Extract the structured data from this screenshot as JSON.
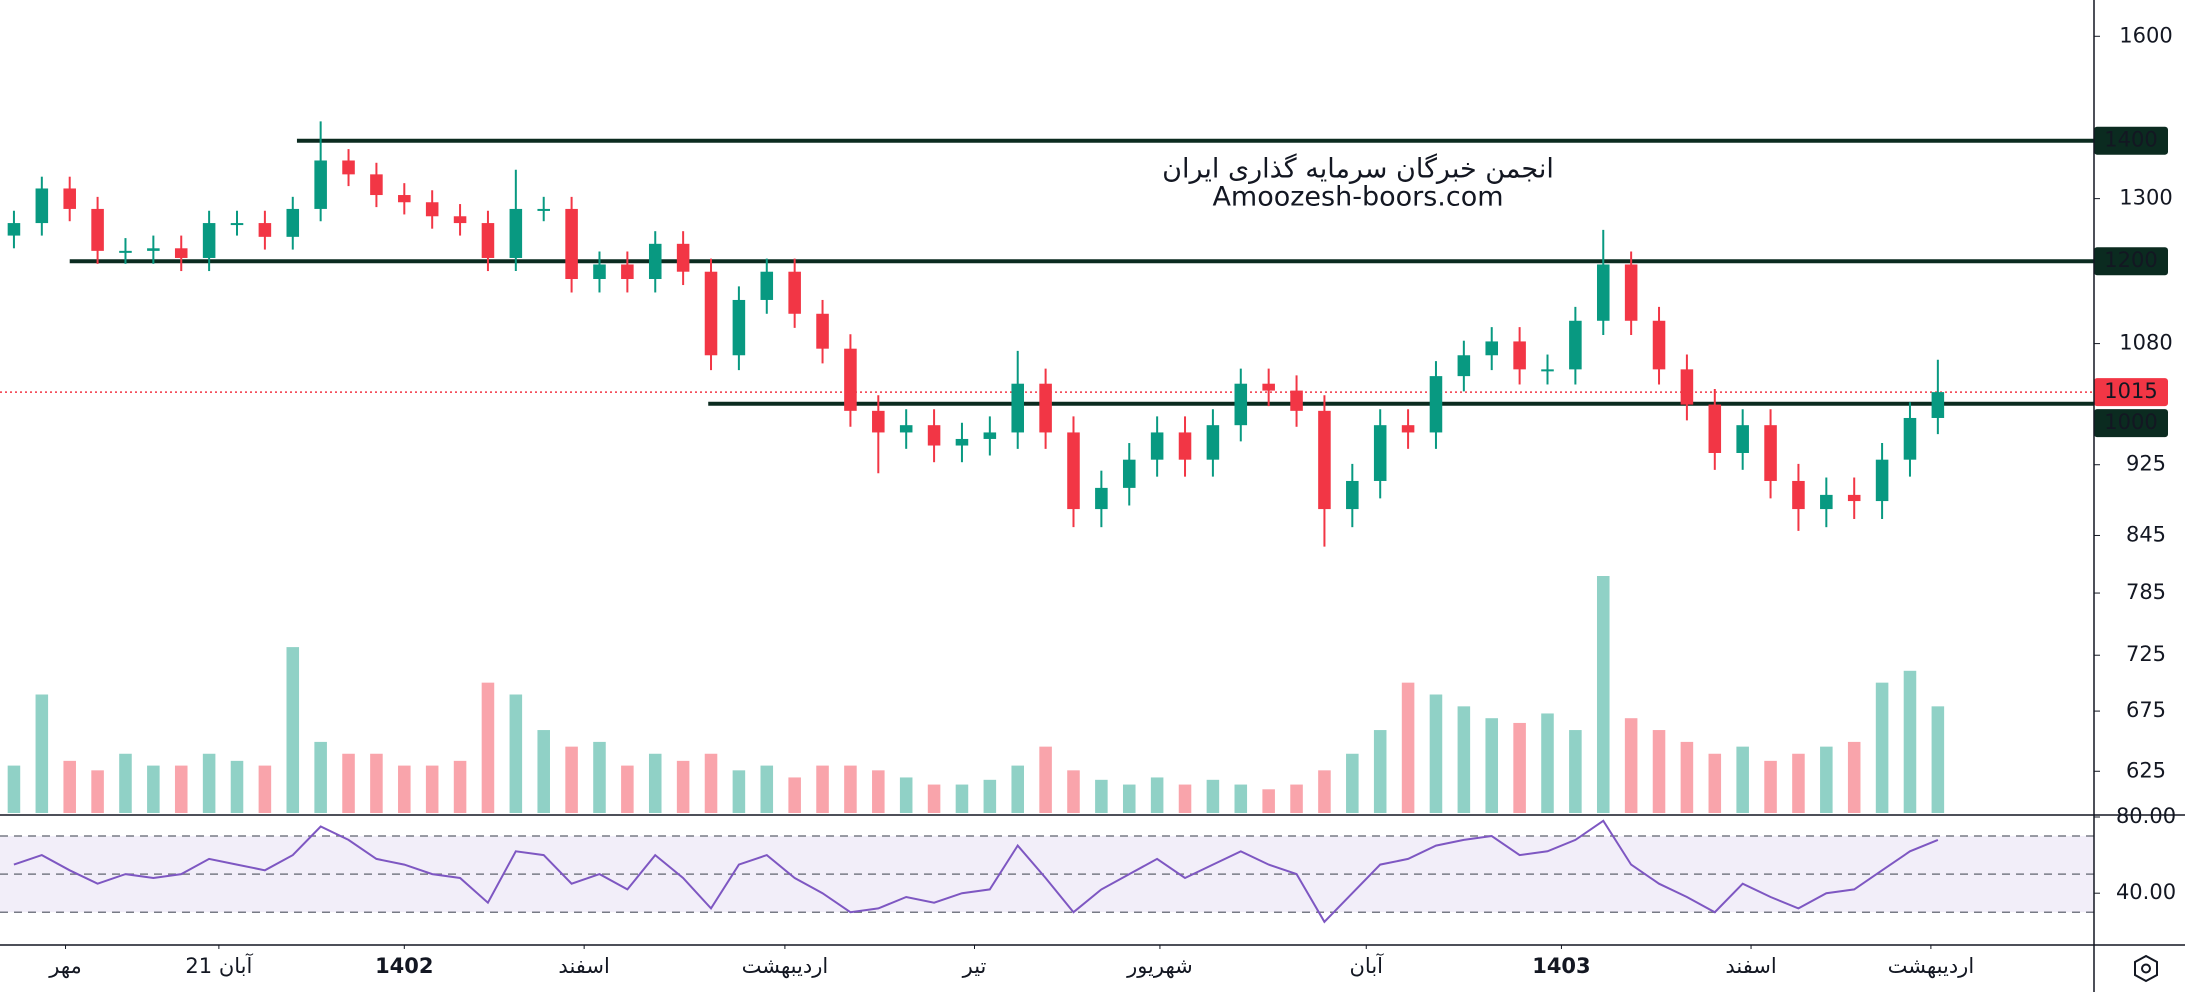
{
  "chart_data": {
    "type": "candlestick",
    "watermark_title": "انجمن خبرگان سرمایه گذاری ایران",
    "watermark_url": "Amoozesh-boors.com",
    "open": [
      1240,
      1260,
      1317,
      1283,
      1216,
      1216,
      1220,
      1205,
      1260,
      1260,
      1238,
      1283,
      1365,
      1341,
      1306,
      1294,
      1271,
      1260,
      1205,
      1283,
      1283,
      1173,
      1195,
      1173,
      1227,
      1184,
      1064,
      1142,
      1184,
      1122,
      1073,
      991,
      964,
      973,
      948,
      956,
      964,
      1026,
      964,
      874,
      898,
      931,
      964,
      931,
      973,
      1026,
      1017,
      991,
      874,
      906,
      973,
      964,
      1036,
      1064,
      1083,
      1045,
      1045,
      1112,
      1195,
      1112,
      1045,
      999,
      939,
      973,
      906,
      874,
      890,
      883,
      931,
      982
    ],
    "high": [
      1280,
      1337,
      1337,
      1303,
      1236,
      1240,
      1240,
      1280,
      1280,
      1280,
      1303,
      1435,
      1385,
      1361,
      1326,
      1314,
      1291,
      1280,
      1349,
      1303,
      1303,
      1215,
      1215,
      1247,
      1247,
      1204,
      1162,
      1204,
      1204,
      1142,
      1093,
      1011,
      993,
      993,
      976,
      984,
      1070,
      1046,
      984,
      918,
      951,
      984,
      984,
      993,
      1046,
      1046,
      1037,
      1011,
      926,
      993,
      993,
      1056,
      1084,
      1103,
      1103,
      1065,
      1132,
      1249,
      1215,
      1132,
      1065,
      1019,
      993,
      993,
      926,
      910,
      910,
      951,
      1002,
      1058
    ],
    "low": [
      1220,
      1240,
      1263,
      1196,
      1196,
      1196,
      1185,
      1185,
      1240,
      1218,
      1218,
      1263,
      1321,
      1286,
      1274,
      1251,
      1240,
      1185,
      1185,
      1263,
      1153,
      1153,
      1153,
      1153,
      1164,
      1044,
      1044,
      1122,
      1102,
      1053,
      971,
      915,
      944,
      928,
      928,
      936,
      944,
      944,
      854,
      854,
      878,
      911,
      911,
      911,
      953,
      997,
      971,
      833,
      854,
      886,
      944,
      944,
      1016,
      1044,
      1025,
      1025,
      1025,
      1092,
      1092,
      1025,
      979,
      919,
      919,
      886,
      850,
      854,
      863,
      863,
      911,
      962
    ],
    "close": [
      1260,
      1317,
      1283,
      1216,
      1216,
      1220,
      1205,
      1260,
      1260,
      1238,
      1283,
      1365,
      1341,
      1306,
      1294,
      1271,
      1260,
      1205,
      1283,
      1283,
      1173,
      1195,
      1173,
      1227,
      1184,
      1064,
      1142,
      1184,
      1122,
      1073,
      991,
      964,
      973,
      948,
      956,
      964,
      1026,
      964,
      874,
      898,
      931,
      964,
      931,
      973,
      1026,
      1017,
      991,
      874,
      906,
      973,
      964,
      1036,
      1064,
      1083,
      1045,
      1045,
      1112,
      1195,
      1112,
      1045,
      999,
      939,
      973,
      906,
      874,
      890,
      883,
      931,
      982,
      1015
    ],
    "xlim": [
      -0.5,
      74.6
    ],
    "ylim": [
      591,
      1676
    ],
    "log_scale": true,
    "yticks": [
      625,
      675,
      725,
      785,
      845,
      925,
      1080,
      1300,
      1600
    ],
    "xticks": [
      {
        "value": 1.85,
        "label": "مهر"
      },
      {
        "value": 7.35,
        "label": "21 آبان"
      },
      {
        "value": 14,
        "label": "1402"
      },
      {
        "value": 20.45,
        "label": "اسفند"
      },
      {
        "value": 27.65,
        "label": "اردیبهشت"
      },
      {
        "value": 34.45,
        "label": "تیر"
      },
      {
        "value": 41.1,
        "label": "شهریور"
      },
      {
        "value": 48.5,
        "label": "آبان"
      },
      {
        "value": 55.5,
        "label": "1403"
      },
      {
        "value": 62.3,
        "label": "اسفند"
      },
      {
        "value": 68.75,
        "label": "اردیبهشت"
      }
    ],
    "levels": [
      {
        "value": 1400,
        "start": 10.15
      },
      {
        "value": 1200,
        "start": 2
      },
      {
        "value": 1000,
        "start": 24.9
      }
    ],
    "last_price": 1015,
    "up_color": "#089981",
    "down_color": "#f23645",
    "level_color": "#0b2b20",
    "volume": {
      "values": [
        20,
        50,
        22,
        18,
        25,
        20,
        20,
        25,
        22,
        20,
        70,
        30,
        25,
        25,
        20,
        20,
        22,
        55,
        50,
        35,
        28,
        30,
        20,
        25,
        22,
        25,
        18,
        20,
        15,
        20,
        20,
        18,
        15,
        12,
        12,
        14,
        20,
        28,
        18,
        14,
        12,
        15,
        12,
        14,
        12,
        10,
        12,
        18,
        25,
        35,
        55,
        50,
        45,
        40,
        38,
        42,
        35,
        100,
        40,
        35,
        30,
        25,
        28,
        22,
        25,
        28,
        30,
        55,
        60,
        45
      ],
      "ylim": [
        0,
        100
      ]
    },
    "rsi": {
      "values": [
        55,
        60,
        52,
        45,
        50,
        48,
        50,
        58,
        55,
        52,
        60,
        75,
        68,
        58,
        55,
        50,
        48,
        35,
        62,
        60,
        45,
        50,
        42,
        60,
        48,
        32,
        55,
        60,
        48,
        40,
        30,
        32,
        38,
        35,
        40,
        42,
        65,
        48,
        30,
        42,
        50,
        58,
        48,
        55,
        62,
        55,
        50,
        25,
        40,
        55,
        58,
        65,
        68,
        70,
        60,
        62,
        68,
        78,
        55,
        45,
        38,
        30,
        45,
        38,
        32,
        40,
        42,
        52,
        62,
        68
      ],
      "ylim": [
        12.8,
        80
      ],
      "yticks": [
        {
          "value": 80,
          "label": "80.00"
        },
        {
          "value": 40,
          "label": "40.00"
        }
      ],
      "bands": [
        30,
        70
      ],
      "mid": 50,
      "color": "#7e57c2"
    }
  }
}
